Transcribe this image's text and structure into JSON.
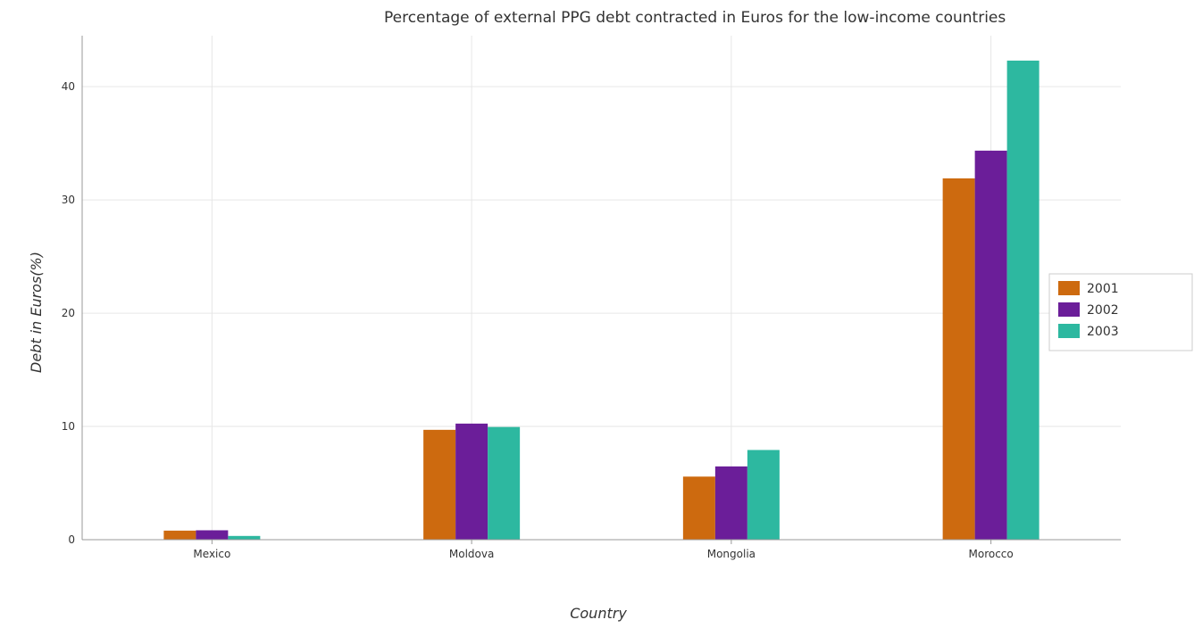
{
  "chart_data": {
    "type": "bar",
    "title": "Percentage of external PPG debt contracted in Euros for the low-income countries",
    "xlabel": "Country",
    "ylabel": "Debt in Euros(%)",
    "categories": [
      "Mexico",
      "Moldova",
      "Mongolia",
      "Morocco"
    ],
    "series": [
      {
        "name": "2001",
        "color": "#cd6a0f",
        "values": [
          0.8,
          9.7,
          5.57,
          31.9
        ]
      },
      {
        "name": "2002",
        "color": "#6b1e99",
        "values": [
          0.83,
          10.25,
          6.47,
          34.35
        ]
      },
      {
        "name": "2003",
        "color": "#2db8a0",
        "values": [
          0.33,
          9.95,
          7.92,
          42.3
        ]
      }
    ],
    "ylim": [
      0,
      44.5
    ],
    "yticks": [
      0,
      10,
      20,
      30,
      40
    ],
    "grid": true,
    "legend_position": "right"
  }
}
